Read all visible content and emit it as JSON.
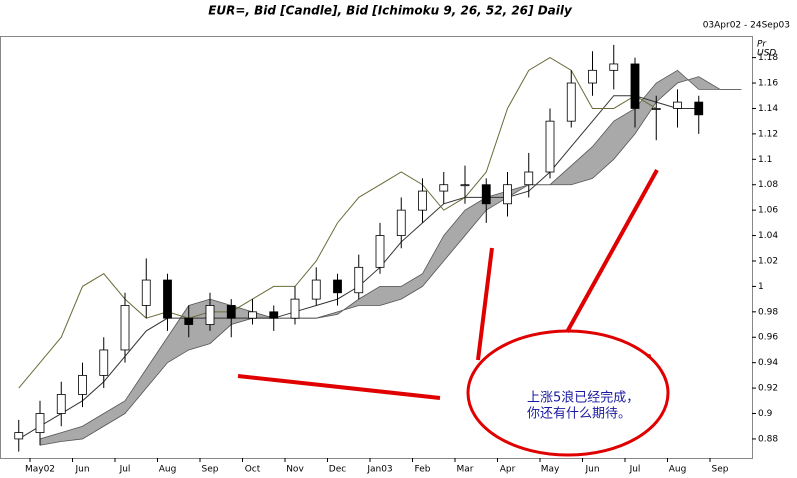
{
  "chart_data": {
    "type": "candlestick",
    "title": "EUR=, Bid [Candle], Bid [Ichimoku 9, 26, 52, 26] Daily",
    "date_range": "03Apr02 - 24Sep03",
    "y_axis_label": [
      "Pr",
      "USD"
    ],
    "annotation": [
      "上涨5浪已经完成，",
      "你还有什么期待。"
    ],
    "categories": [
      null,
      "May02",
      null,
      "Jun",
      null,
      "Jul",
      null,
      "Aug",
      null,
      "Sep",
      null,
      "Oct",
      null,
      "Nov",
      null,
      "Dec",
      null,
      "Jan03",
      null,
      "Feb",
      null,
      "Mar",
      null,
      "Apr",
      null,
      "May",
      null,
      "Jun",
      null,
      "Jul",
      null,
      "Aug",
      null,
      "Sep",
      null
    ],
    "open": [
      0.88,
      0.885,
      0.9,
      0.915,
      0.93,
      0.95,
      0.985,
      1.005,
      0.975,
      0.97,
      0.985,
      0.975,
      0.98,
      0.975,
      0.99,
      1.005,
      0.995,
      1.015,
      1.04,
      1.06,
      1.075,
      1.08,
      1.08,
      1.065,
      1.08,
      1.09,
      1.13,
      1.16,
      1.17,
      1.175,
      1.14,
      1.14,
      1.145,
      null,
      null
    ],
    "high": [
      0.895,
      0.91,
      0.925,
      0.94,
      0.96,
      0.995,
      1.022,
      1.01,
      0.985,
      0.995,
      0.99,
      0.99,
      0.985,
      1.0,
      1.015,
      1.01,
      1.025,
      1.05,
      1.07,
      1.085,
      1.09,
      1.095,
      1.085,
      1.09,
      1.105,
      1.14,
      1.17,
      1.185,
      1.19,
      1.18,
      1.15,
      1.155,
      1.15,
      null,
      null
    ],
    "low": [
      0.87,
      0.875,
      0.89,
      0.905,
      0.92,
      0.94,
      0.975,
      0.965,
      0.96,
      0.965,
      0.96,
      0.97,
      0.965,
      0.97,
      0.985,
      0.985,
      0.99,
      1.01,
      1.03,
      1.05,
      1.065,
      1.065,
      1.05,
      1.055,
      1.07,
      1.085,
      1.125,
      1.15,
      1.155,
      1.125,
      1.115,
      1.125,
      1.12,
      null,
      null
    ],
    "close": [
      0.885,
      0.9,
      0.915,
      0.93,
      0.95,
      0.985,
      1.005,
      0.975,
      0.97,
      0.985,
      0.975,
      0.98,
      0.975,
      0.99,
      1.005,
      0.995,
      1.015,
      1.04,
      1.06,
      1.075,
      1.08,
      1.08,
      1.065,
      1.08,
      1.09,
      1.13,
      1.16,
      1.17,
      1.175,
      1.14,
      1.14,
      1.145,
      1.135,
      null,
      null
    ],
    "cloud": {
      "color": "#9a9a9a",
      "span_a": [
        null,
        0.88,
        0.885,
        0.89,
        0.9,
        0.91,
        0.935,
        0.96,
        0.985,
        0.99,
        0.985,
        0.98,
        0.975,
        0.975,
        0.975,
        0.98,
        0.985,
        0.985,
        0.99,
        1.0,
        1.02,
        1.04,
        1.06,
        1.07,
        1.08,
        1.08,
        1.08,
        1.085,
        1.1,
        1.12,
        1.145,
        1.16,
        1.165,
        1.155,
        1.155
      ],
      "span_b": [
        null,
        0.875,
        0.878,
        0.88,
        0.89,
        0.9,
        0.92,
        0.94,
        0.95,
        0.955,
        0.97,
        0.975,
        0.975,
        0.975,
        0.975,
        0.978,
        0.99,
        1.0,
        1.0,
        1.01,
        1.04,
        1.06,
        1.07,
        1.075,
        1.08,
        1.08,
        1.095,
        1.11,
        1.13,
        1.14,
        1.16,
        1.17,
        1.155,
        1.155,
        1.155
      ]
    },
    "lines": [
      {
        "color": "#333333",
        "values": [
          0.88,
          0.89,
          0.9,
          0.91,
          0.925,
          0.945,
          0.965,
          0.975,
          0.975,
          0.975,
          0.975,
          0.975,
          0.975,
          0.98,
          0.985,
          0.99,
          1.0,
          1.015,
          1.035,
          1.05,
          1.065,
          1.07,
          1.07,
          1.07,
          1.075,
          1.09,
          1.11,
          1.13,
          1.15,
          1.15,
          1.145,
          1.14,
          1.14,
          null,
          null
        ]
      },
      {
        "color": "#6b6b3a",
        "values": [
          0.92,
          0.94,
          0.96,
          1.0,
          1.01,
          0.99,
          0.975,
          0.98,
          0.975,
          0.98,
          0.98,
          0.99,
          1.0,
          1.0,
          1.02,
          1.05,
          1.07,
          1.08,
          1.09,
          1.08,
          1.06,
          1.07,
          1.09,
          1.14,
          1.17,
          1.18,
          1.17,
          1.14,
          1.14,
          1.15,
          1.14,
          null,
          null,
          null,
          null
        ]
      }
    ],
    "ylim": [
      0.865,
      1.197
    ],
    "yticks": [
      0.88,
      0.9,
      0.92,
      0.94,
      0.96,
      0.98,
      1,
      1.02,
      1.04,
      1.06,
      1.08,
      1.1,
      1.12,
      1.14,
      1.16,
      1.18
    ]
  }
}
